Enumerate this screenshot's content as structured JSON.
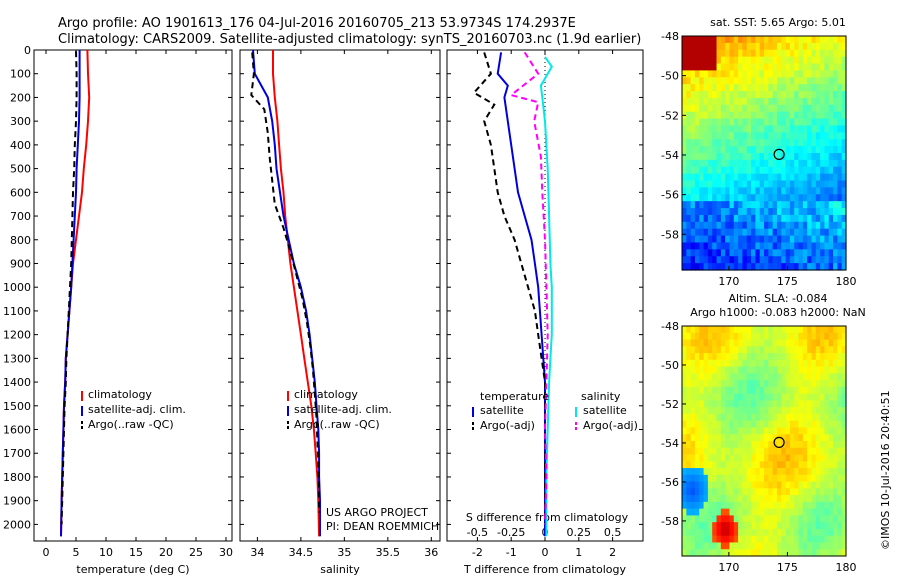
{
  "header": {
    "line1": "Argo profile: AO 1901613_176 04-Jul-2016 20160705_213 53.9734S 174.2937E",
    "line2": "Climatology: CARS2009. Satellite-adjusted climatology: synTS_20160703.nc (1.9d earlier)"
  },
  "credit": "US ARGO PROJECT",
  "pi": "PI: DEAN ROEMMICH",
  "stamp": "©IMOS 10-Jul-2016 20:40:51",
  "colors": {
    "climatology": "#ff0000",
    "satellite": "#0000dd",
    "argo": "#000000",
    "sal_sat": "#00e8e8",
    "sal_argo": "#ff00ff"
  },
  "chart_data": [
    {
      "type": "line",
      "id": "temperature",
      "xlabel": "temperature (deg C)",
      "ylabel": "",
      "xlim": [
        -2,
        31
      ],
      "ylim": [
        2070,
        0
      ],
      "xticks": [
        0,
        5,
        10,
        15,
        20,
        25,
        30
      ],
      "yticks": [
        0,
        100,
        200,
        300,
        400,
        500,
        600,
        700,
        800,
        900,
        1000,
        1100,
        1200,
        1300,
        1400,
        1500,
        1600,
        1700,
        1800,
        1900,
        2000
      ],
      "legend": [
        "climatology",
        "satellite-adj. clim.",
        "Argo(..raw -QC)"
      ],
      "series": [
        {
          "name": "climatology",
          "color": "#ff0000",
          "points": [
            [
              6.9,
              0
            ],
            [
              7.0,
              100
            ],
            [
              7.2,
              200
            ],
            [
              7.0,
              300
            ],
            [
              6.7,
              400
            ],
            [
              6.3,
              500
            ],
            [
              6.0,
              600
            ],
            [
              5.5,
              700
            ],
            [
              5.0,
              800
            ],
            [
              4.5,
              900
            ],
            [
              4.2,
              1000
            ],
            [
              3.9,
              1100
            ],
            [
              3.6,
              1200
            ],
            [
              3.3,
              1300
            ],
            [
              3.2,
              1400
            ],
            [
              3.0,
              1500
            ],
            [
              2.9,
              1600
            ],
            [
              2.8,
              1700
            ],
            [
              2.7,
              1800
            ],
            [
              2.6,
              1900
            ],
            [
              2.5,
              2050
            ]
          ]
        },
        {
          "name": "satellite-adj. clim.",
          "color": "#0000dd",
          "points": [
            [
              5.6,
              0
            ],
            [
              5.6,
              100
            ],
            [
              5.6,
              200
            ],
            [
              5.5,
              300
            ],
            [
              5.3,
              400
            ],
            [
              5.1,
              500
            ],
            [
              5.0,
              600
            ],
            [
              4.8,
              700
            ],
            [
              4.6,
              800
            ],
            [
              4.4,
              900
            ],
            [
              4.2,
              1000
            ],
            [
              3.9,
              1100
            ],
            [
              3.6,
              1200
            ],
            [
              3.3,
              1300
            ],
            [
              3.2,
              1400
            ],
            [
              3.0,
              1500
            ],
            [
              2.9,
              1600
            ],
            [
              2.8,
              1700
            ],
            [
              2.7,
              1800
            ],
            [
              2.6,
              1900
            ],
            [
              2.5,
              2050
            ]
          ]
        },
        {
          "name": "Argo(..raw -QC)",
          "color": "#000000",
          "dash": true,
          "points": [
            [
              5.0,
              5
            ],
            [
              5.1,
              100
            ],
            [
              5.1,
              200
            ],
            [
              5.0,
              300
            ],
            [
              4.8,
              400
            ],
            [
              4.7,
              500
            ],
            [
              4.5,
              600
            ],
            [
              4.4,
              700
            ],
            [
              4.3,
              800
            ],
            [
              4.2,
              900
            ],
            [
              4.0,
              1000
            ],
            [
              3.8,
              1100
            ],
            [
              3.6,
              1200
            ],
            [
              3.4,
              1300
            ],
            [
              3.3,
              1400
            ],
            [
              3.1,
              1500
            ],
            [
              3.0,
              1600
            ],
            [
              2.9,
              1700
            ],
            [
              2.8,
              1800
            ],
            [
              2.7,
              1900
            ],
            [
              2.6,
              2000
            ]
          ]
        }
      ]
    },
    {
      "type": "line",
      "id": "salinity",
      "xlabel": "salinity",
      "ylabel": "",
      "xlim": [
        33.8,
        36.1
      ],
      "ylim": [
        2070,
        0
      ],
      "xticks": [
        34,
        34.5,
        35,
        35.5,
        36
      ],
      "xticklabels": [
        "34",
        "34.5",
        "35",
        "35.5",
        "36"
      ],
      "yticks": [
        0,
        100,
        200,
        300,
        400,
        500,
        600,
        700,
        800,
        900,
        1000,
        1100,
        1200,
        1300,
        1400,
        1500,
        1600,
        1700,
        1800,
        1900,
        2000
      ],
      "legend": [
        "climatology",
        "satellite-adj. clim.",
        "Argo(..raw -QC)"
      ],
      "series": [
        {
          "name": "climatology",
          "color": "#ff0000",
          "points": [
            [
              34.18,
              0
            ],
            [
              34.18,
              100
            ],
            [
              34.2,
              200
            ],
            [
              34.23,
              300
            ],
            [
              34.25,
              400
            ],
            [
              34.27,
              500
            ],
            [
              34.3,
              600
            ],
            [
              34.32,
              700
            ],
            [
              34.35,
              800
            ],
            [
              34.38,
              900
            ],
            [
              34.42,
              1000
            ],
            [
              34.46,
              1100
            ],
            [
              34.5,
              1200
            ],
            [
              34.54,
              1300
            ],
            [
              34.58,
              1400
            ],
            [
              34.62,
              1500
            ],
            [
              34.65,
              1600
            ],
            [
              34.67,
              1700
            ],
            [
              34.69,
              1800
            ],
            [
              34.7,
              1900
            ],
            [
              34.71,
              2050
            ]
          ]
        },
        {
          "name": "satellite-adj. clim.",
          "color": "#0000dd",
          "points": [
            [
              33.95,
              0
            ],
            [
              33.97,
              100
            ],
            [
              34.12,
              200
            ],
            [
              34.17,
              300
            ],
            [
              34.2,
              400
            ],
            [
              34.22,
              500
            ],
            [
              34.26,
              600
            ],
            [
              34.3,
              700
            ],
            [
              34.36,
              800
            ],
            [
              34.42,
              900
            ],
            [
              34.5,
              1000
            ],
            [
              34.56,
              1100
            ],
            [
              34.6,
              1200
            ],
            [
              34.63,
              1300
            ],
            [
              34.66,
              1400
            ],
            [
              34.68,
              1500
            ],
            [
              34.7,
              1600
            ],
            [
              34.71,
              1700
            ],
            [
              34.71,
              1800
            ],
            [
              34.72,
              1900
            ],
            [
              34.72,
              2050
            ]
          ]
        },
        {
          "name": "Argo(..raw -QC)",
          "color": "#000000",
          "dash": true,
          "points": [
            [
              33.94,
              10
            ],
            [
              33.96,
              100
            ],
            [
              33.93,
              190
            ],
            [
              34.08,
              250
            ],
            [
              34.12,
              350
            ],
            [
              34.14,
              450
            ],
            [
              34.17,
              550
            ],
            [
              34.2,
              650
            ],
            [
              34.3,
              750
            ],
            [
              34.38,
              850
            ],
            [
              34.45,
              950
            ],
            [
              34.52,
              1050
            ],
            [
              34.57,
              1150
            ],
            [
              34.61,
              1250
            ],
            [
              34.64,
              1350
            ],
            [
              34.66,
              1450
            ],
            [
              34.68,
              1550
            ],
            [
              34.69,
              1650
            ],
            [
              34.7,
              1750
            ],
            [
              34.71,
              1850
            ],
            [
              34.71,
              1950
            ]
          ]
        }
      ]
    },
    {
      "type": "line",
      "id": "difference",
      "xlabel": "T difference from climatology",
      "x2label": "S difference from climatology",
      "ylabel": "",
      "xlim": [
        -2.9,
        2.9
      ],
      "ylim": [
        2070,
        0
      ],
      "xticks": [
        -2,
        -1,
        0,
        1,
        2
      ],
      "x2ticks": [
        -0.5,
        -0.25,
        0,
        0.25,
        0.5
      ],
      "x2ticklabels": [
        "-0.5",
        "-0.25",
        "0",
        "0.25",
        "0.5"
      ],
      "yticks": [
        0,
        100,
        200,
        300,
        400,
        500,
        600,
        700,
        800,
        900,
        1000,
        1100,
        1200,
        1300,
        1400,
        1500,
        1600,
        1700,
        1800,
        1900,
        2000
      ],
      "legend_left_title": "temperature",
      "legend_right_title": "salinity",
      "legend": [
        "satellite",
        "Argo(-adj)",
        "satellite",
        "Argo(-adj)"
      ],
      "series": [
        {
          "name": "satellite",
          "group": "temperature",
          "color": "#0000dd",
          "points": [
            [
              -1.3,
              10
            ],
            [
              -1.4,
              100
            ],
            [
              -1.1,
              150
            ],
            [
              -1.2,
              200
            ],
            [
              -1.1,
              300
            ],
            [
              -1.0,
              400
            ],
            [
              -0.9,
              500
            ],
            [
              -0.8,
              600
            ],
            [
              -0.6,
              700
            ],
            [
              -0.4,
              800
            ],
            [
              -0.3,
              900
            ],
            [
              -0.2,
              1000
            ],
            [
              -0.15,
              1100
            ],
            [
              -0.1,
              1200
            ],
            [
              -0.05,
              1300
            ],
            [
              0,
              1400
            ],
            [
              0,
              1500
            ],
            [
              0,
              1700
            ],
            [
              0,
              2050
            ]
          ]
        },
        {
          "name": "Argo(-adj)",
          "group": "temperature",
          "color": "#000000",
          "dash": true,
          "points": [
            [
              -1.8,
              10
            ],
            [
              -1.6,
              100
            ],
            [
              -2.1,
              180
            ],
            [
              -1.5,
              230
            ],
            [
              -1.8,
              300
            ],
            [
              -1.6,
              400
            ],
            [
              -1.5,
              500
            ],
            [
              -1.4,
              600
            ],
            [
              -1.2,
              700
            ],
            [
              -0.9,
              800
            ],
            [
              -0.7,
              900
            ],
            [
              -0.5,
              1000
            ],
            [
              -0.3,
              1100
            ],
            [
              -0.2,
              1200
            ],
            [
              -0.1,
              1300
            ],
            [
              0,
              1400
            ],
            [
              0,
              1500
            ],
            [
              0,
              1700
            ],
            [
              0,
              2000
            ]
          ]
        },
        {
          "name": "satellite",
          "group": "salinity",
          "color": "#00e8e8",
          "points": [
            [
              0.0,
              30
            ],
            [
              0.05,
              70
            ],
            [
              0.02,
              100
            ],
            [
              -0.03,
              150
            ],
            [
              -0.02,
              200
            ],
            [
              0.0,
              300
            ],
            [
              0.02,
              500
            ],
            [
              0.03,
              700
            ],
            [
              0.04,
              900
            ],
            [
              0.05,
              1000
            ],
            [
              0.05,
              1200
            ],
            [
              0.04,
              1300
            ],
            [
              0.03,
              1400
            ],
            [
              0.02,
              1600
            ],
            [
              0.01,
              1800
            ],
            [
              0.01,
              2050
            ]
          ]
        },
        {
          "name": "Argo(-adj)",
          "group": "salinity",
          "color": "#ff00ff",
          "dash": true,
          "points": [
            [
              -0.15,
              10
            ],
            [
              -0.05,
              100
            ],
            [
              -0.25,
              190
            ],
            [
              -0.05,
              220
            ],
            [
              -0.08,
              300
            ],
            [
              -0.03,
              450
            ],
            [
              -0.02,
              600
            ],
            [
              0.0,
              800
            ],
            [
              0.01,
              1000
            ],
            [
              0.02,
              1200
            ],
            [
              0.01,
              1400
            ],
            [
              0.0,
              1600
            ],
            [
              0.01,
              1800
            ],
            [
              0.0,
              2000
            ]
          ]
        }
      ]
    },
    {
      "type": "heatmap",
      "id": "sst_map",
      "title": "sat. SST: 5.65  Argo: 5.01",
      "xlim": [
        166,
        180
      ],
      "ylim": [
        -59.8,
        -48
      ],
      "xticks": [
        170,
        175,
        180
      ],
      "yticks": [
        -48,
        -50,
        -52,
        -54,
        -56,
        -58
      ],
      "profile_location": [
        174.29,
        -53.97
      ]
    },
    {
      "type": "heatmap",
      "id": "sla_map",
      "title": "Altim. SLA: -0.084",
      "subtitle": "Argo h1000: -0.083 h2000: NaN",
      "xlim": [
        166,
        180
      ],
      "ylim": [
        -59.8,
        -48
      ],
      "xticks": [
        170,
        175,
        180
      ],
      "yticks": [
        -48,
        -50,
        -52,
        -54,
        -56,
        -58
      ],
      "profile_location": [
        174.29,
        -53.97
      ]
    }
  ]
}
